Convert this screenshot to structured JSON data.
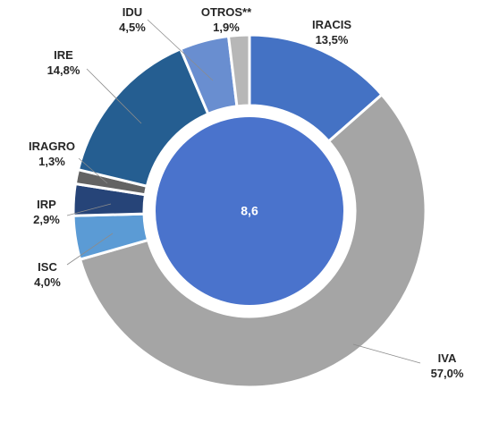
{
  "chart_data": {
    "type": "pie",
    "subtype": "doughnut",
    "center_value": "8,6",
    "slices": [
      {
        "name": "IRACIS",
        "label": "13,5%",
        "value": 13.5,
        "color": "#4472c4"
      },
      {
        "name": "IVA",
        "label": "57,0%",
        "value": 57.0,
        "color": "#a5a5a5"
      },
      {
        "name": "ISC",
        "label": "4,0%",
        "value": 4.0,
        "color": "#5b9bd5"
      },
      {
        "name": "IRP",
        "label": "2,9%",
        "value": 2.9,
        "color": "#264478"
      },
      {
        "name": "IRAGRO",
        "label": "1,3%",
        "value": 1.3,
        "color": "#636363"
      },
      {
        "name": "IRE",
        "label": "14,8%",
        "value": 14.8,
        "color": "#255e91"
      },
      {
        "name": "IDU",
        "label": "4,5%",
        "value": 4.5,
        "color": "#698ed0"
      },
      {
        "name": "OTROS**",
        "label": "1,9%",
        "value": 1.9,
        "color": "#b7b7b7"
      }
    ],
    "center_color": "#4a73cc"
  }
}
